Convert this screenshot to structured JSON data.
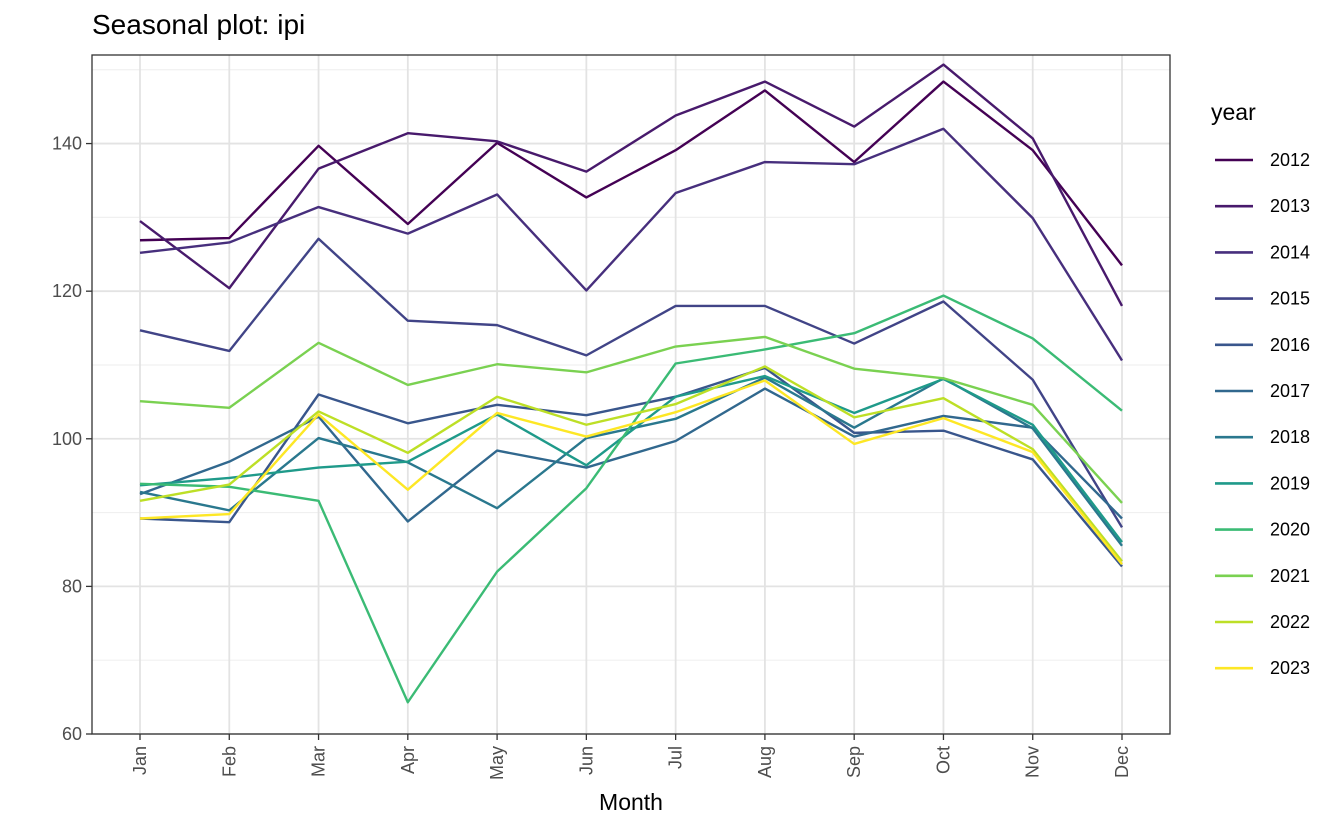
{
  "chart_data": {
    "type": "line",
    "title": "Seasonal plot: ipi",
    "xlabel": "Month",
    "ylabel": "",
    "ylim": [
      60,
      152
    ],
    "y_ticks": [
      60,
      80,
      100,
      120,
      140
    ],
    "grid": true,
    "legend_position": "right",
    "legend_title": "year",
    "categories": [
      "Jan",
      "Feb",
      "Mar",
      "Apr",
      "May",
      "Jun",
      "Jul",
      "Aug",
      "Sep",
      "Oct",
      "Nov",
      "Dec"
    ],
    "series": [
      {
        "name": "2012",
        "color": "#440154",
        "values": [
          126.9,
          127.2,
          139.7,
          129.1,
          140.1,
          132.7,
          139.1,
          147.2,
          137.5,
          148.4,
          139.1,
          123.5
        ]
      },
      {
        "name": "2013",
        "color": "#481A6C",
        "values": [
          129.5,
          120.4,
          136.6,
          141.4,
          140.3,
          136.2,
          143.8,
          148.4,
          142.3,
          150.7,
          140.7,
          118.0
        ]
      },
      {
        "name": "2014",
        "color": "#472F7D",
        "values": [
          125.2,
          126.6,
          131.4,
          127.8,
          133.1,
          120.1,
          133.3,
          137.5,
          137.2,
          142.0,
          129.9,
          110.6
        ]
      },
      {
        "name": "2015",
        "color": "#414487",
        "values": [
          114.7,
          111.9,
          127.1,
          116.0,
          115.4,
          111.3,
          118.0,
          118.0,
          112.9,
          118.6,
          108.0,
          88.0
        ]
      },
      {
        "name": "2016",
        "color": "#39568C",
        "values": [
          89.2,
          88.7,
          106.0,
          102.1,
          104.6,
          103.2,
          105.7,
          109.6,
          100.8,
          101.1,
          97.2,
          82.7
        ]
      },
      {
        "name": "2017",
        "color": "#31688E",
        "values": [
          92.5,
          96.9,
          103.0,
          88.8,
          98.4,
          96.1,
          99.7,
          106.8,
          100.3,
          103.1,
          101.5,
          89.2
        ]
      },
      {
        "name": "2018",
        "color": "#2A788E",
        "values": [
          92.8,
          90.3,
          100.1,
          96.8,
          90.6,
          100.1,
          102.7,
          108.3,
          101.5,
          108.2,
          101.4,
          85.5
        ]
      },
      {
        "name": "2019",
        "color": "#1F9A8A",
        "values": [
          93.7,
          94.7,
          96.1,
          96.9,
          103.3,
          96.4,
          105.7,
          108.5,
          103.5,
          108.1,
          101.9,
          86.0
        ]
      },
      {
        "name": "2020",
        "color": "#3BBB75",
        "values": [
          93.9,
          93.5,
          91.6,
          64.3,
          82.0,
          93.3,
          110.2,
          112.1,
          114.3,
          119.4,
          113.6,
          103.8
        ]
      },
      {
        "name": "2021",
        "color": "#7AD151",
        "values": [
          105.1,
          104.2,
          113.0,
          107.3,
          110.1,
          109.0,
          112.5,
          113.8,
          109.5,
          108.2,
          104.6,
          91.3
        ]
      },
      {
        "name": "2022",
        "color": "#BDDF26",
        "values": [
          91.6,
          93.8,
          103.7,
          98.1,
          105.7,
          101.9,
          104.7,
          109.8,
          102.9,
          105.5,
          98.6,
          83.4
        ]
      },
      {
        "name": "2023",
        "color": "#FDE725",
        "values": [
          89.2,
          89.8,
          103.3,
          93.1,
          103.5,
          100.3,
          103.6,
          107.9,
          99.3,
          102.8,
          98.2,
          83.0
        ]
      }
    ]
  }
}
